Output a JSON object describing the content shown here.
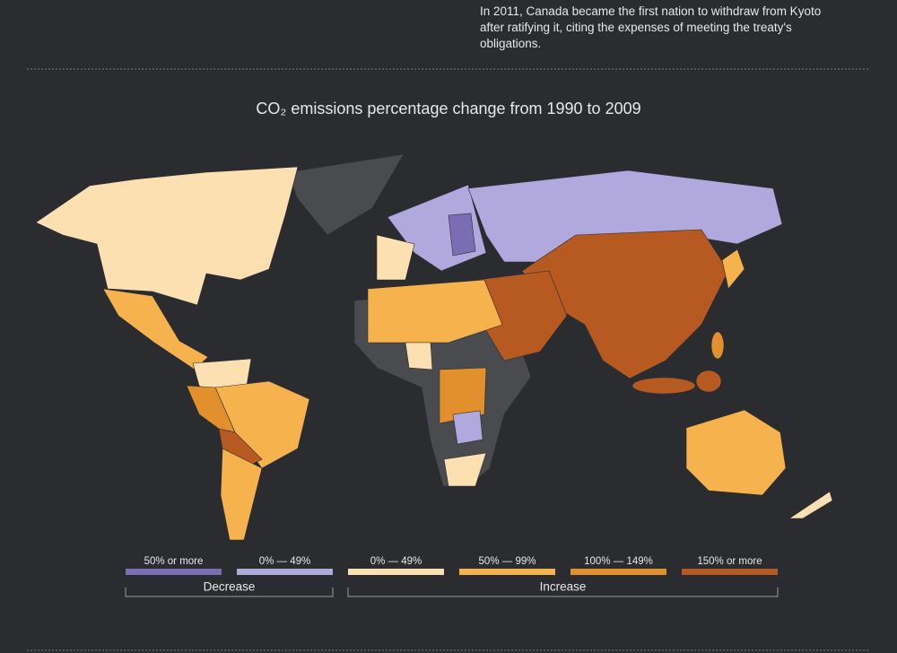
{
  "intro_note": "In 2011, Canada became the first nation to withdraw from Kyoto after ratifying it, citing the expenses of meeting the treaty's obligations.",
  "map": {
    "title": "CO₂ emissions percentage change from 1990 to 2009",
    "legend": {
      "groups": [
        {
          "label": "Decrease",
          "items": [
            {
              "label": "50% or more",
              "color": "#7b6db4"
            },
            {
              "label": "0% — 49%",
              "color": "#b1a9dd"
            }
          ]
        },
        {
          "label": "Increase",
          "items": [
            {
              "label": "0% — 49%",
              "color": "#fde0b2"
            },
            {
              "label": "50% — 99%",
              "color": "#f6b34d"
            },
            {
              "label": "100% — 149%",
              "color": "#e2902e"
            },
            {
              "label": "150% or more",
              "color": "#b65a22"
            }
          ]
        }
      ]
    }
  }
}
